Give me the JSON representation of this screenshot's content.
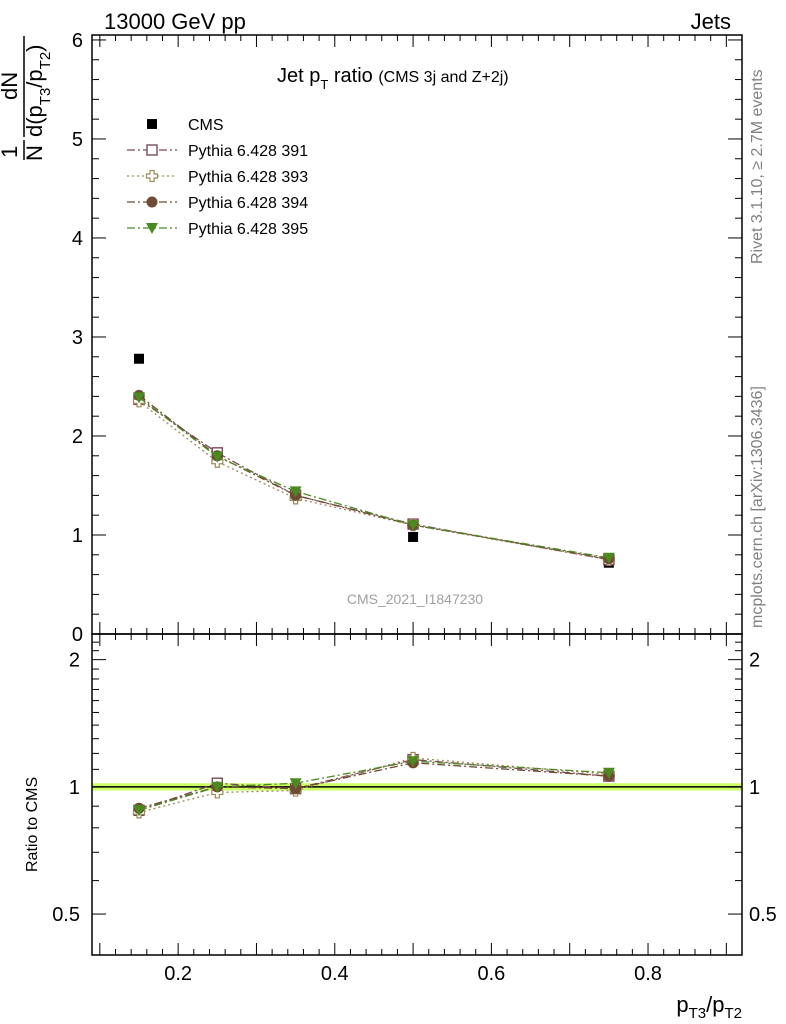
{
  "header": {
    "left": "13000 GeV pp",
    "right": "Jets"
  },
  "main_title": {
    "prefix": "Jet p",
    "sub": "T",
    "suffix": " ratio",
    "note": "(CMS 3j and Z+2j)"
  },
  "side_labels": {
    "rivet": "Rivet 3.1.10, ≥ 2.7M events",
    "mcplots": "mcplots.cern.ch [arXiv:1306.3436]"
  },
  "watermark": "CMS_2021_I1847230",
  "axes": {
    "main_ylabel": {
      "frac_num": "1",
      "frac_den": "N",
      "dN": "dN",
      "d": "d(p",
      "sub1": "T3",
      "mid": "/p",
      "sub2": "T2",
      "close": ")"
    },
    "ratio_ylabel": "Ratio to CMS",
    "xlabel": {
      "p1": "p",
      "sub1": "T3",
      "mid": "/p",
      "sub2": "T2"
    },
    "main_ytick_labels": [
      "0",
      "1",
      "2",
      "3",
      "4",
      "5",
      "6"
    ],
    "ratio_ytick_labels": [
      "0.5",
      "1",
      "2"
    ],
    "x_tick_labels": [
      "0.2",
      "0.4",
      "0.6",
      "0.8"
    ]
  },
  "chart_data": [
    {
      "type": "scatter",
      "panel": "main",
      "xlim": [
        0.09,
        0.92
      ],
      "ylim": [
        0,
        6.05
      ],
      "x": [
        0.15,
        0.25,
        0.35,
        0.5,
        0.75
      ],
      "series": [
        {
          "name": "CMS",
          "values": [
            2.78,
            1.8,
            1.41,
            0.98,
            0.72
          ],
          "color": "#000000",
          "marker": "filled-square",
          "line": "none"
        },
        {
          "name": "Pythia 6.428 391",
          "values": [
            2.37,
            1.83,
            1.4,
            1.11,
            0.75
          ],
          "color": "#7b4a5a",
          "marker": "open-square",
          "line": "dash-dot"
        },
        {
          "name": "Pythia 6.428 393",
          "values": [
            2.35,
            1.74,
            1.37,
            1.1,
            0.75
          ],
          "color": "#9c8a5a",
          "marker": "open-cross",
          "line": "dotted"
        },
        {
          "name": "Pythia 6.428 394",
          "values": [
            2.41,
            1.8,
            1.4,
            1.1,
            0.76
          ],
          "color": "#6e4b32",
          "marker": "filled-circle",
          "line": "dash-dot"
        },
        {
          "name": "Pythia 6.428 395",
          "values": [
            2.39,
            1.79,
            1.44,
            1.1,
            0.77
          ],
          "color": "#4b8a1e",
          "marker": "filled-triangle-down",
          "line": "dash-dot"
        }
      ],
      "legend_position": "top-left"
    },
    {
      "type": "scatter",
      "panel": "ratio",
      "scale": "log",
      "xlim": [
        0.09,
        0.92
      ],
      "ylim": [
        0.4,
        2.3
      ],
      "x": [
        0.15,
        0.25,
        0.35,
        0.5,
        0.75
      ],
      "reference_band": {
        "value": 1.0,
        "band": [
          0.98,
          1.02
        ],
        "color": "#ccff66"
      },
      "series": [
        {
          "name": "Pythia 6.428 391",
          "values": [
            0.88,
            1.02,
            0.99,
            1.16,
            1.06
          ],
          "color": "#7b4a5a",
          "marker": "open-square"
        },
        {
          "name": "Pythia 6.428 393",
          "values": [
            0.87,
            0.97,
            0.98,
            1.17,
            1.07
          ],
          "color": "#9c8a5a",
          "marker": "open-cross"
        },
        {
          "name": "Pythia 6.428 394",
          "values": [
            0.89,
            1.0,
            0.99,
            1.14,
            1.06
          ],
          "color": "#6e4b32",
          "marker": "filled-circle"
        },
        {
          "name": "Pythia 6.428 395",
          "values": [
            0.88,
            1.0,
            1.02,
            1.15,
            1.08
          ],
          "color": "#4b8a1e",
          "marker": "filled-triangle-down"
        }
      ]
    }
  ]
}
